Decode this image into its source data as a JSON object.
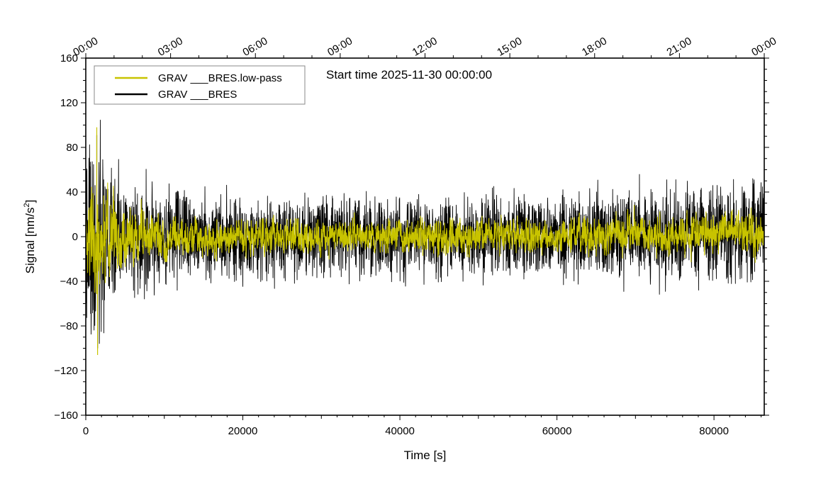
{
  "colors": {
    "raw": "#000000",
    "lowpass": "#c8c300",
    "frame": "#000000",
    "background": "#ffffff"
  },
  "chart_data": {
    "type": "line",
    "title": "",
    "annotation": "Start time 2025-11-30 00:00:00",
    "xlabel": "Time [s]",
    "ylabel": "Signal [nm/s²]",
    "ylabel_parts": {
      "main": "Signal [nm/s",
      "sup": "2",
      "end": "]"
    },
    "xlim": [
      0,
      86400
    ],
    "ylim": [
      -160,
      160
    ],
    "x_ticks": [
      0,
      20000,
      40000,
      60000,
      80000
    ],
    "x_tick_labels": [
      "0",
      "20000",
      "40000",
      "60000",
      "80000"
    ],
    "y_ticks": [
      160,
      120,
      80,
      40,
      0,
      -40,
      -80,
      -120,
      -160
    ],
    "y_tick_labels": [
      "160",
      "120",
      "80",
      "40",
      "0",
      "−40",
      "−80",
      "−120",
      "−160"
    ],
    "top_axis": {
      "values": [
        0,
        10800,
        21600,
        32400,
        43200,
        54000,
        64800,
        75600,
        86400
      ],
      "labels": [
        "00:00",
        "03:00",
        "06:00",
        "09:00",
        "12:00",
        "15:00",
        "18:00",
        "21:00",
        "00:00"
      ]
    },
    "legend": {
      "position": "top-left",
      "entries": [
        "GRAV ___BRES.low-pass",
        "GRAV ___BRES"
      ]
    },
    "series": [
      {
        "name": "GRAV ___BRES",
        "color": "#000000",
        "note": "band-limited noise, zero mean",
        "envelope": {
          "t": [
            0,
            1000,
            2500,
            5000,
            10000,
            15000,
            25000,
            40000,
            55000,
            65000,
            75000,
            86400
          ],
          "amp": [
            50,
            70,
            58,
            42,
            32,
            28,
            26,
            26,
            27,
            29,
            31,
            33
          ],
          "mean": [
            0,
            -2,
            -3,
            -2,
            -1,
            0,
            0,
            0,
            1,
            2,
            3,
            4
          ]
        },
        "peaks": {
          "max": 91,
          "min": -100
        }
      },
      {
        "name": "GRAV ___BRES.low-pass",
        "color": "#c8c300",
        "note": "low-pass filtered, slightly smaller amplitude",
        "envelope": {
          "t": [
            0,
            1000,
            2500,
            5000,
            10000,
            15000,
            25000,
            40000,
            55000,
            65000,
            75000,
            86400
          ],
          "amp": [
            40,
            60,
            48,
            34,
            24,
            20,
            18,
            18,
            19,
            20,
            21,
            22
          ],
          "mean": [
            0,
            -2,
            -3,
            -2,
            -1,
            0,
            0,
            0,
            1,
            2,
            3,
            4
          ]
        },
        "peaks": {
          "max": 98,
          "min": -106
        }
      }
    ]
  }
}
